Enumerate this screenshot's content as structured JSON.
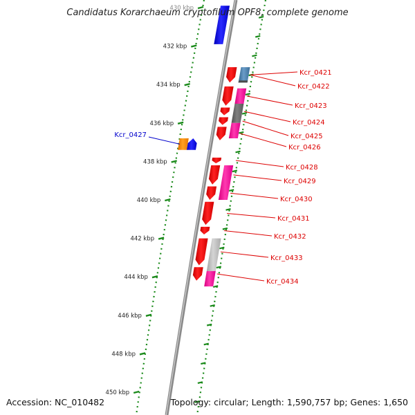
{
  "title": "Candidatus Korarchaeum cryptofilum OPF8, complete genome",
  "footer": {
    "accession": "Accession: NC_010482",
    "summary": "Topology: circular; Length: 1,590,757 bp; Genes: 1,650"
  },
  "colors": {
    "backbone": "#7f7f7f",
    "dotted_ring": "#1a8a1a",
    "tick": "#1a8a1a",
    "forward_label": "#0000cc",
    "reverse_label": "#dd0000",
    "label_line_forward": "#0000cc",
    "label_line_reverse": "#dd0000"
  },
  "scale": {
    "unit": "kbp",
    "ticks": [
      {
        "label": "430 kbp",
        "kbp": 430
      },
      {
        "label": "432 kbp",
        "kbp": 432
      },
      {
        "label": "434 kbp",
        "kbp": 434
      },
      {
        "label": "436 kbp",
        "kbp": 436
      },
      {
        "label": "438 kbp",
        "kbp": 438
      },
      {
        "label": "440 kbp",
        "kbp": 440
      },
      {
        "label": "442 kbp",
        "kbp": 442
      },
      {
        "label": "444 kbp",
        "kbp": 444
      },
      {
        "label": "446 kbp",
        "kbp": 446
      },
      {
        "label": "448 kbp",
        "kbp": 448
      },
      {
        "label": "450 kbp",
        "kbp": 450
      }
    ]
  },
  "genes": [
    {
      "name": "Kcr_0421",
      "strand": "reverse",
      "color": "#ff0000",
      "track": "cds_reverse",
      "start_kbp": 433.1,
      "end_kbp": 433.9
    },
    {
      "name": "Kcr_0422",
      "strand": "reverse",
      "color": "#4a7fb0",
      "track": "cog_reverse",
      "start_kbp": 433.1,
      "end_kbp": 433.9
    },
    {
      "name": "Kcr_0423",
      "strand": "reverse",
      "color": "#ff0000",
      "track": "cds_reverse",
      "start_kbp": 434.1,
      "end_kbp": 435.1
    },
    {
      "name": "Kcr_0424",
      "strand": "reverse",
      "color": "#ff0000",
      "track": "cds_reverse",
      "start_kbp": 435.2,
      "end_kbp": 435.6
    },
    {
      "name": "Kcr_0425",
      "strand": "reverse",
      "color": "#ff0000",
      "track": "cds_reverse",
      "start_kbp": 435.7,
      "end_kbp": 436.1
    },
    {
      "name": "Kcr_0426",
      "strand": "reverse",
      "color": "#ff0000",
      "track": "cds_reverse",
      "start_kbp": 436.2,
      "end_kbp": 436.9
    },
    {
      "name": "Kcr_0427",
      "strand": "forward",
      "color": "#0000ff",
      "track": "cds_forward",
      "start_kbp": 436.8,
      "end_kbp": 437.4
    },
    {
      "name": "Kcr_0428",
      "strand": "reverse",
      "color": "#ff0000",
      "track": "cds_reverse",
      "start_kbp": 437.8,
      "end_kbp": 438.1
    },
    {
      "name": "Kcr_0429",
      "strand": "reverse",
      "color": "#ff0000",
      "track": "cds_reverse",
      "start_kbp": 438.2,
      "end_kbp": 439.2
    },
    {
      "name": "Kcr_0430",
      "strand": "reverse",
      "color": "#ff0000",
      "track": "cds_reverse",
      "start_kbp": 439.3,
      "end_kbp": 440.0
    },
    {
      "name": "Kcr_0431",
      "strand": "reverse",
      "color": "#ff0000",
      "track": "cds_reverse",
      "start_kbp": 440.1,
      "end_kbp": 441.3
    },
    {
      "name": "Kcr_0432",
      "strand": "reverse",
      "color": "#ff0000",
      "track": "cds_reverse",
      "start_kbp": 441.4,
      "end_kbp": 441.8
    },
    {
      "name": "Kcr_0433",
      "strand": "reverse",
      "color": "#ff0000",
      "track": "cds_reverse",
      "start_kbp": 442.0,
      "end_kbp": 443.4
    },
    {
      "name": "Kcr_0434",
      "strand": "reverse",
      "color": "#ff0000",
      "track": "cds_reverse",
      "start_kbp": 443.5,
      "end_kbp": 444.2
    }
  ],
  "unlabeled_features": [
    {
      "kind": "forward-cds-upper",
      "color": "#0000ff",
      "start_kbp": 429.9,
      "end_kbp": 431.9
    },
    {
      "kind": "cog-magenta",
      "color": "#ff1aa0",
      "start_kbp": 434.2,
      "end_kbp": 435.0
    },
    {
      "kind": "cog-gray",
      "color": "#6e6e6e",
      "start_kbp": 435.0,
      "end_kbp": 436.0
    },
    {
      "kind": "cog-magenta",
      "color": "#ff1aa0",
      "start_kbp": 436.0,
      "end_kbp": 436.8
    },
    {
      "kind": "cog-orange",
      "color": "#ff8c00",
      "start_kbp": 436.8,
      "end_kbp": 437.4
    },
    {
      "kind": "cog-magenta",
      "color": "#ff1aa0",
      "start_kbp": 438.2,
      "end_kbp": 440.0
    },
    {
      "kind": "cog-lightgray",
      "color": "#bdbdbd",
      "start_kbp": 442.0,
      "end_kbp": 443.7
    },
    {
      "kind": "cog-magenta",
      "color": "#ff1aa0",
      "start_kbp": 443.7,
      "end_kbp": 444.5
    }
  ]
}
